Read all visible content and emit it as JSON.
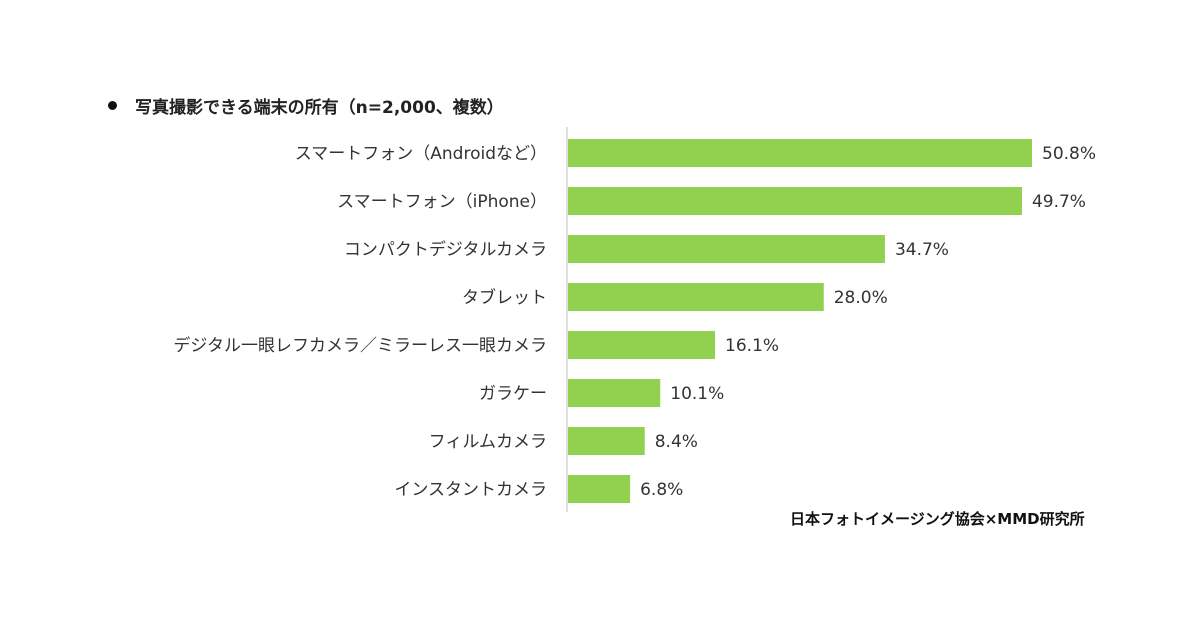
{
  "chart_data": {
    "type": "bar",
    "orientation": "horizontal",
    "title": "写真撮影できる端末の所有（n=2,000、複数）",
    "categories": [
      "スマートフォン（Androidなど）",
      "スマートフォン（iPhone）",
      "コンパクトデジタルカメラ",
      "タブレット",
      "デジタル一眼レフカメラ／ミラーレス一眼カメラ",
      "ガラケー",
      "フィルムカメラ",
      "インスタントカメラ"
    ],
    "values": [
      50.8,
      49.7,
      34.7,
      28.0,
      16.1,
      10.1,
      8.4,
      6.8
    ],
    "value_labels": [
      "50.8%",
      "49.7%",
      "34.7%",
      "28.0%",
      "16.1%",
      "10.1%",
      "8.4%",
      "6.8%"
    ],
    "unit": "%",
    "xlim": [
      0,
      52
    ],
    "bar_color": "#92d050",
    "grid": false,
    "legend": "none",
    "source": "日本フォトイメージング協会×MMD研究所"
  }
}
